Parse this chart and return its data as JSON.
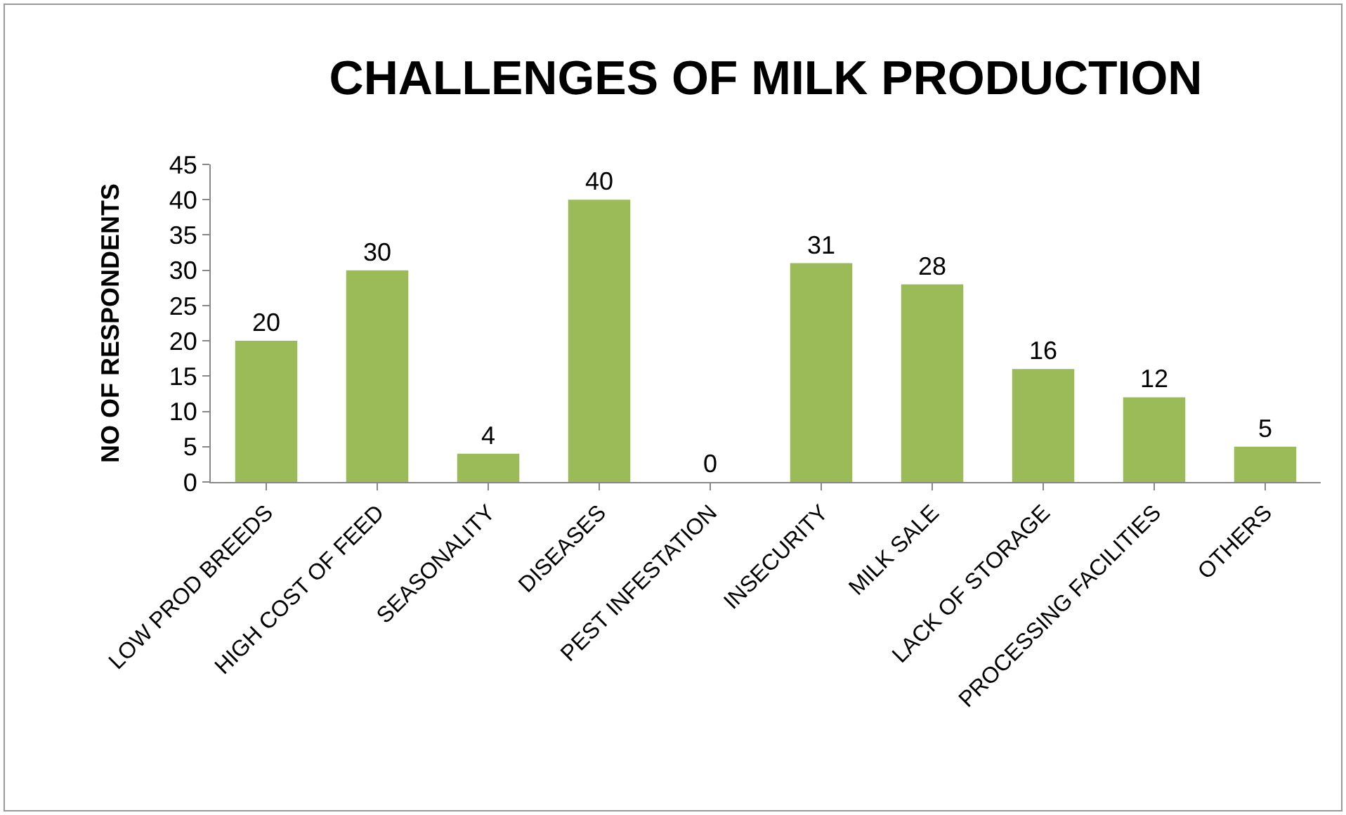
{
  "chart_data": {
    "type": "bar",
    "title": "CHALLENGES OF MILK PRODUCTION",
    "ylabel": "NO OF RESPONDENTS",
    "categories": [
      "LOW PROD BREEDS",
      "HIGH COST OF FEED",
      "SEASONALITY",
      "DISEASES",
      "PEST INFESTATION",
      "INSECURITY",
      "MILK SALE",
      "LACK OF STORAGE",
      "PROCESSING FACILITIES",
      "OTHERS"
    ],
    "values": [
      20,
      30,
      4,
      40,
      0,
      31,
      28,
      16,
      12,
      5
    ],
    "color": "#9bbb59",
    "ylim": [
      0,
      45
    ],
    "yticks": [
      0,
      5,
      10,
      15,
      20,
      25,
      30,
      35,
      40,
      45
    ],
    "data_labels": true,
    "legend": false
  }
}
